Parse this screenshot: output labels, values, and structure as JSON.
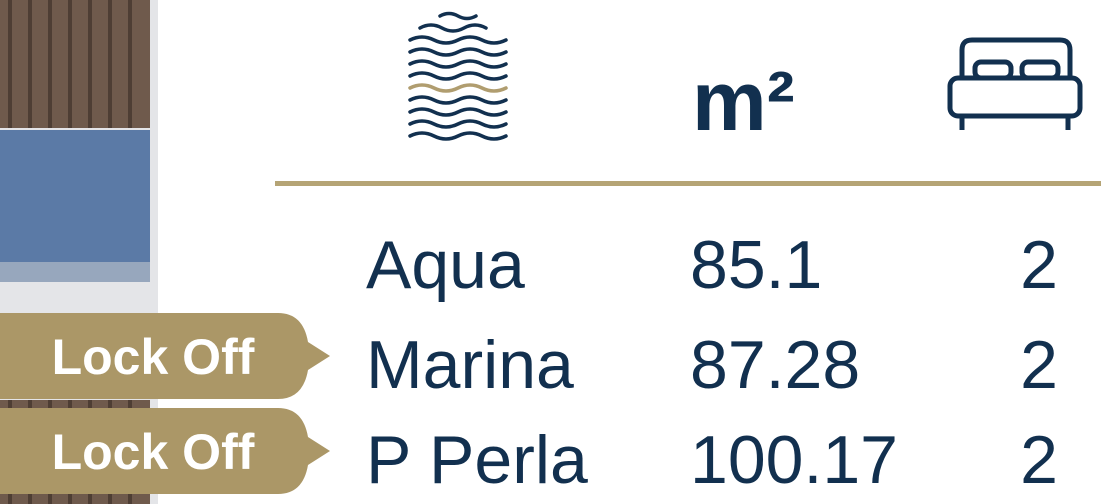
{
  "header": {
    "area_label": "m²"
  },
  "table": {
    "rows": [
      {
        "name": "Aqua",
        "area": "85.1",
        "bedrooms": "2"
      },
      {
        "name": "Marina",
        "area": "87.28",
        "bedrooms": "2",
        "badge": "Lock Off"
      },
      {
        "name": "P Perla",
        "area": "100.17",
        "bedrooms": "2",
        "badge": "Lock Off"
      }
    ]
  }
}
